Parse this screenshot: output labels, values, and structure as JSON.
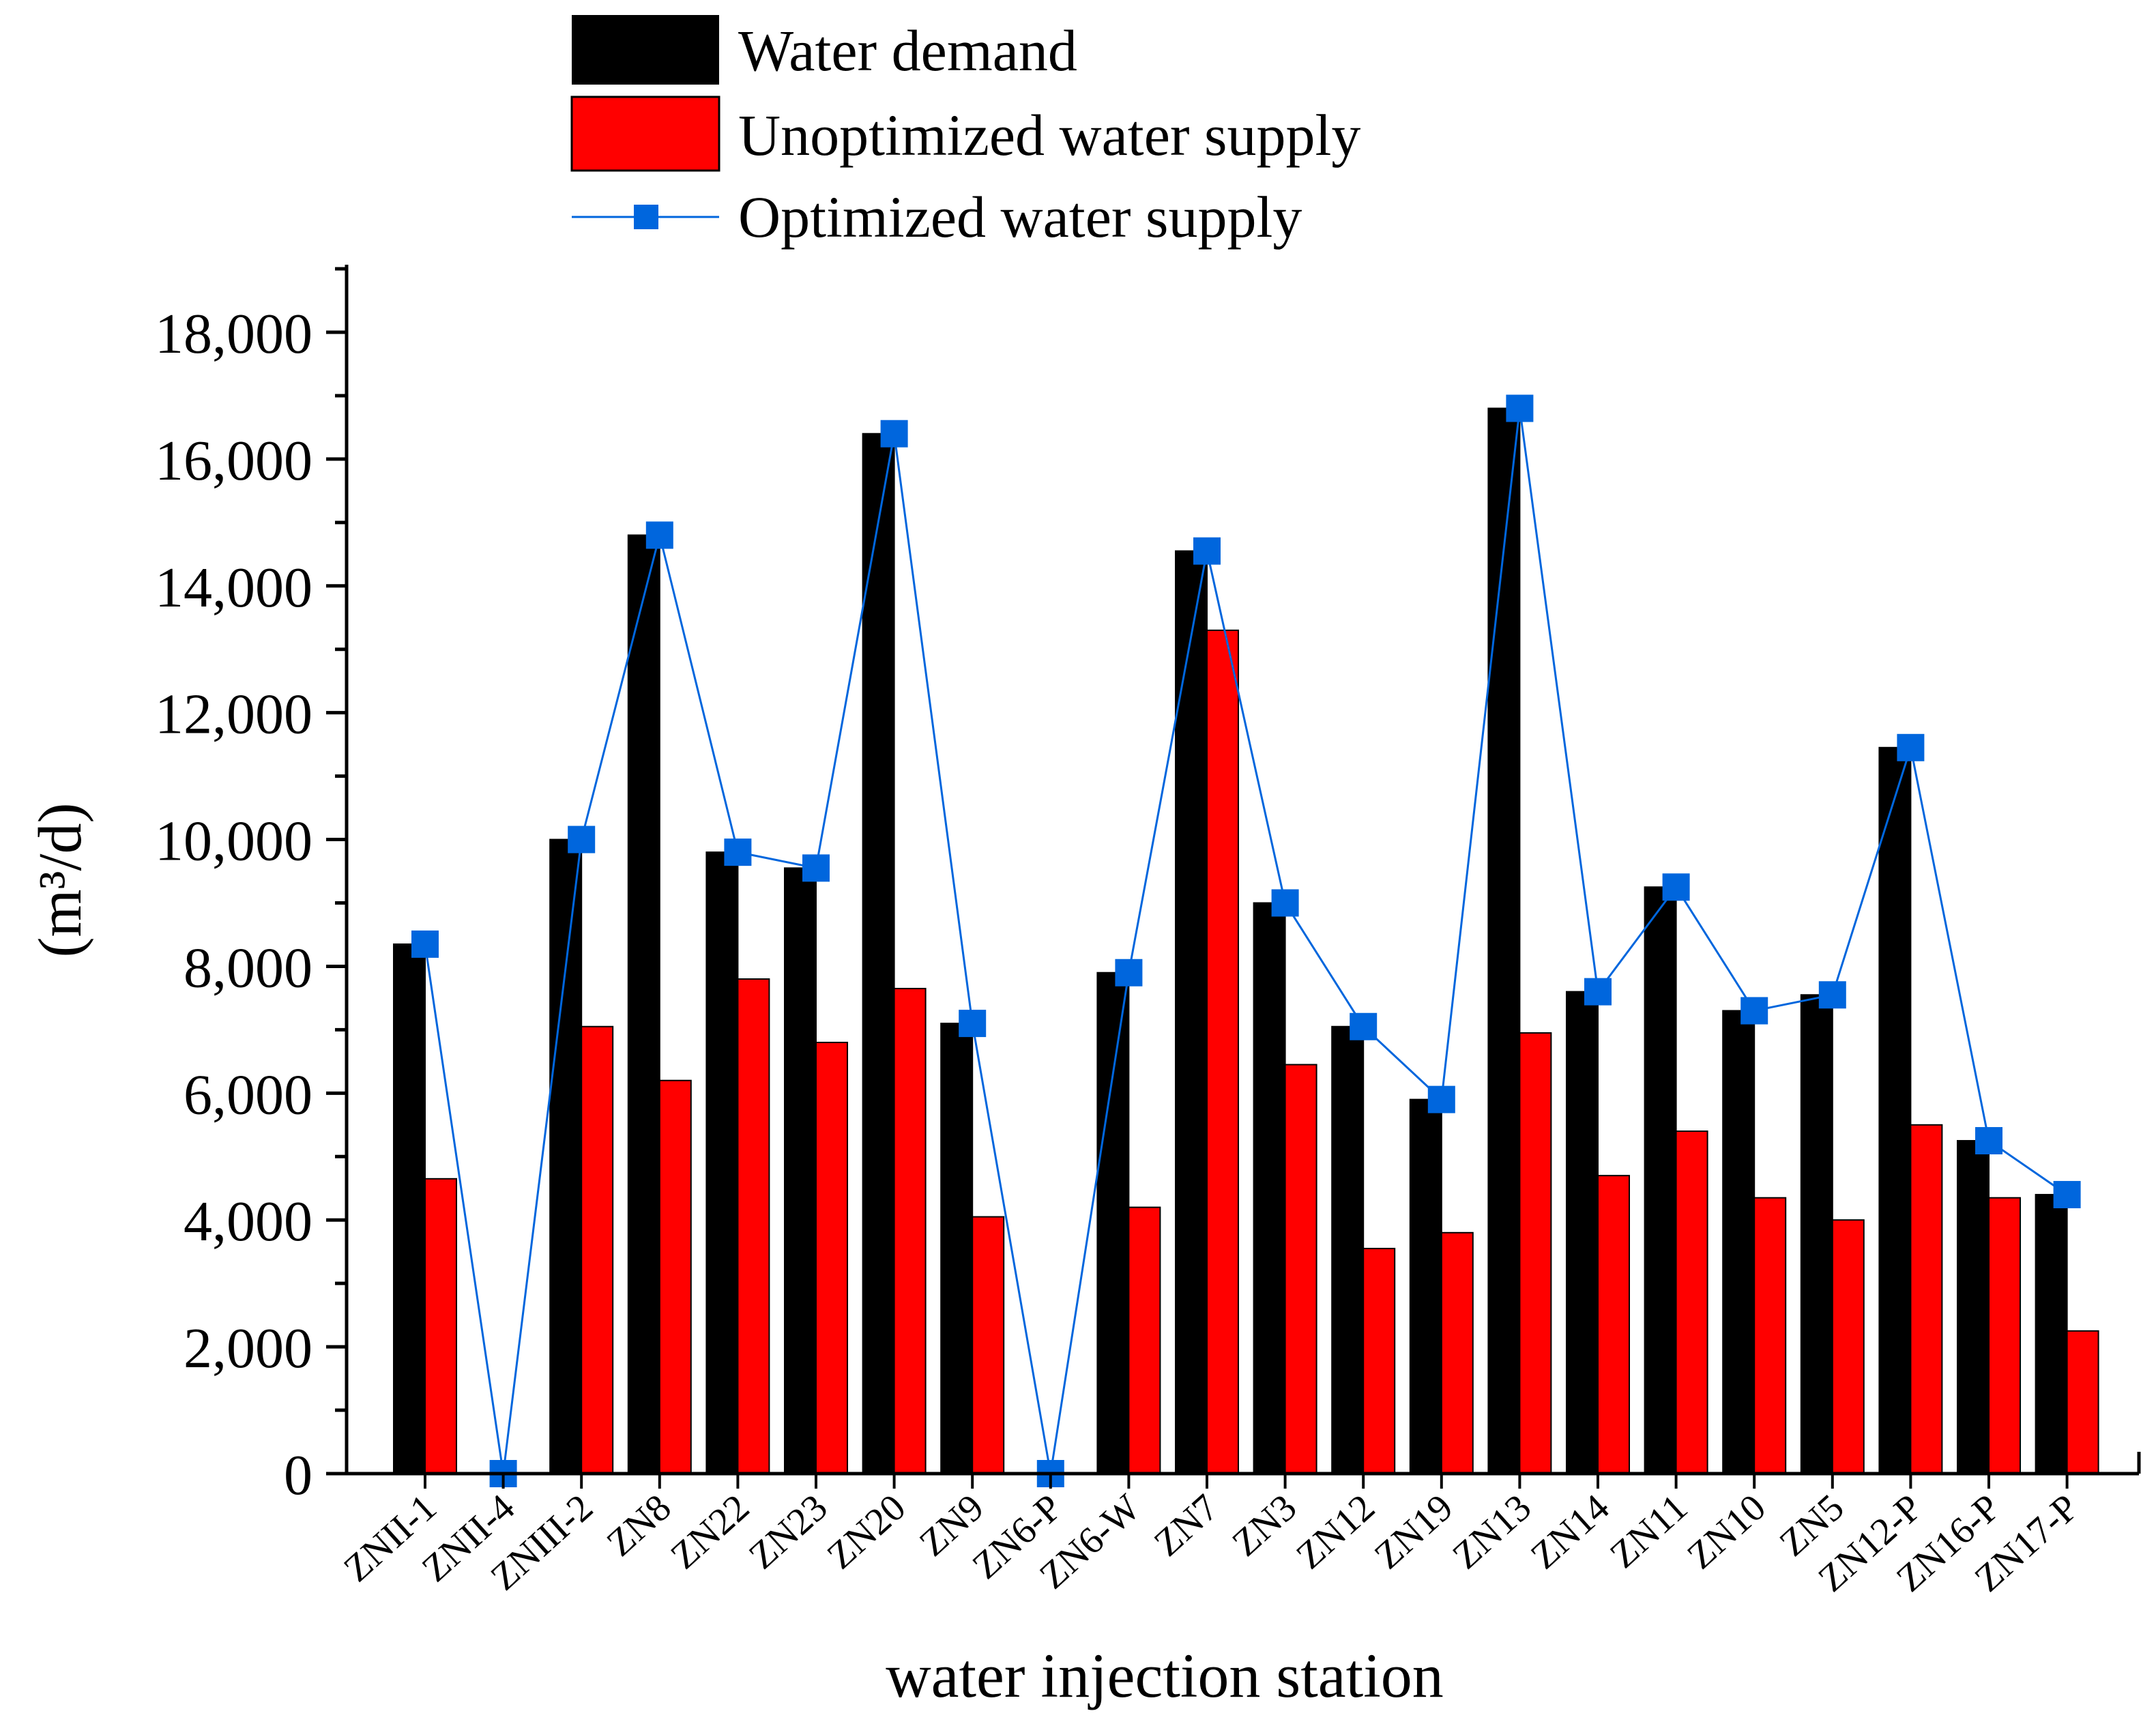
{
  "chart_data": {
    "type": "bar",
    "title": "",
    "xlabel": "water injection station",
    "ylabel": "(m³/d)",
    "ylim": [
      0,
      19000
    ],
    "yticks": [
      0,
      2000,
      4000,
      6000,
      8000,
      10000,
      12000,
      14000,
      16000,
      18000
    ],
    "ytick_labels": [
      "0",
      "2,000",
      "4,000",
      "6,000",
      "8,000",
      "10,000",
      "12,000",
      "14,000",
      "16,000",
      "18,000"
    ],
    "legend_position": "top-center",
    "categories": [
      "ZNII-1",
      "ZNII-4",
      "ZNIII-2",
      "ZN8",
      "ZN22",
      "ZN23",
      "ZN20",
      "ZN9",
      "ZN6-P",
      "ZN6-W",
      "ZN7",
      "ZN3",
      "ZN12",
      "ZN19",
      "ZN13",
      "ZN14",
      "ZN11",
      "ZN10",
      "ZN5",
      "ZN12-P",
      "ZN16-P",
      "ZN17-P"
    ],
    "series": [
      {
        "name": "Water demand",
        "kind": "bar",
        "color": "#000000",
        "values": [
          8350,
          0,
          10000,
          14800,
          9800,
          9550,
          16400,
          7100,
          0,
          7900,
          14550,
          9000,
          7050,
          5900,
          16800,
          7600,
          9250,
          7300,
          7550,
          11450,
          5250,
          4400
        ]
      },
      {
        "name": "Unoptimized water supply",
        "kind": "bar",
        "color": "#ff0000",
        "values": [
          4650,
          0,
          7050,
          6200,
          7800,
          6800,
          7650,
          4050,
          0,
          4200,
          13300,
          6450,
          3550,
          3800,
          6950,
          4700,
          5400,
          4350,
          4000,
          5500,
          4350,
          2250
        ]
      },
      {
        "name": "Optimized water supply",
        "kind": "line",
        "color": "#0066dd",
        "values": [
          8350,
          0,
          10000,
          14800,
          9800,
          9550,
          16400,
          7100,
          0,
          7900,
          14550,
          9000,
          7050,
          5900,
          16800,
          7600,
          9250,
          7300,
          7550,
          11450,
          5250,
          4400
        ]
      }
    ]
  }
}
